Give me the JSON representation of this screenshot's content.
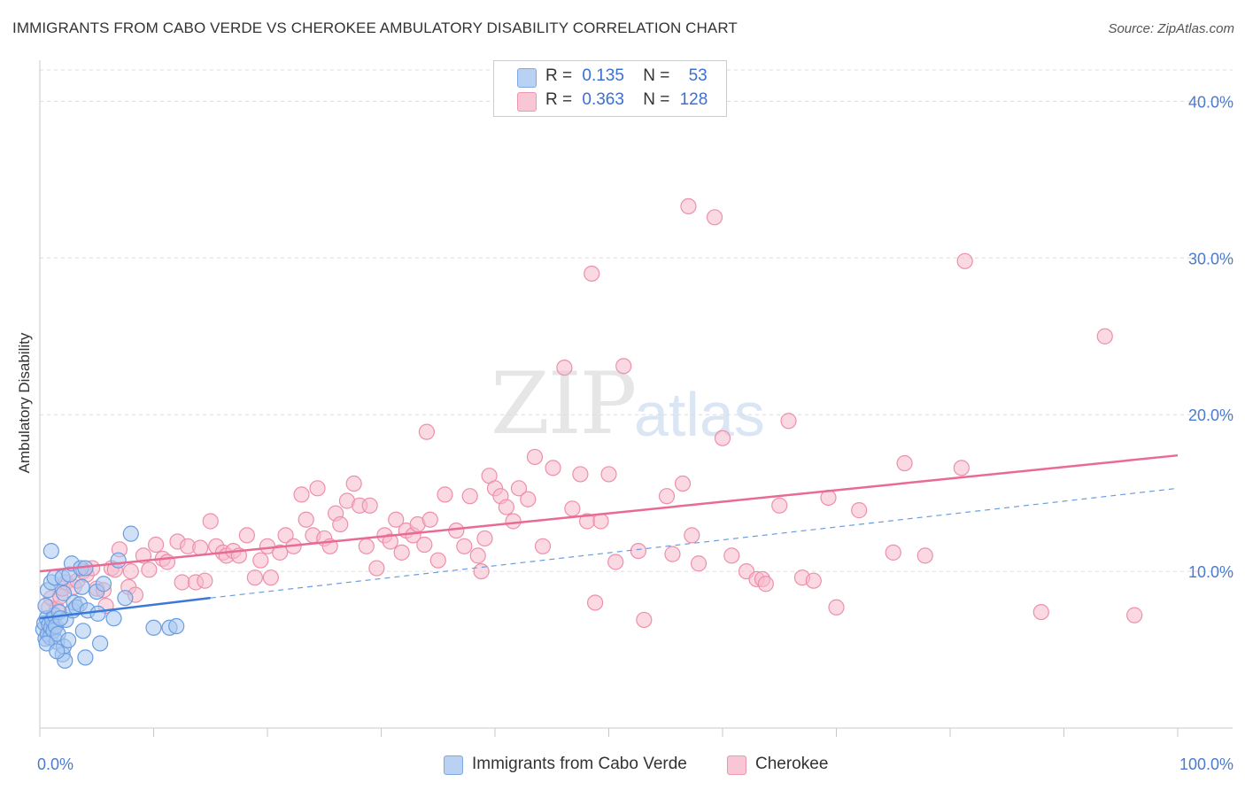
{
  "title": "IMMIGRANTS FROM CABO VERDE VS CHEROKEE AMBULATORY DISABILITY CORRELATION CHART",
  "source": "Source: ZipAtlas.com",
  "watermark": {
    "zip": "ZIP",
    "atlas": "atlas"
  },
  "legend": {
    "rows": [
      {
        "r_label": "R =",
        "r_value": "0.135",
        "n_label": "N =",
        "n_value": "53",
        "color": "#a9c8f0"
      },
      {
        "r_label": "R =",
        "r_value": "0.363",
        "n_label": "N =",
        "n_value": "128",
        "color": "#f8b9cc"
      }
    ]
  },
  "chart_data": {
    "type": "scatter",
    "title": "IMMIGRANTS FROM CABO VERDE VS CHEROKEE AMBULATORY DISABILITY CORRELATION CHART",
    "xlabel": "",
    "ylabel": "Ambulatory Disability",
    "xlim": [
      0,
      100
    ],
    "ylim": [
      0,
      42
    ],
    "x_tick_labels": [
      "0.0%",
      "100.0%"
    ],
    "y_ticks": [
      10,
      20,
      30,
      40
    ],
    "y_tick_labels": [
      "10.0%",
      "20.0%",
      "30.0%",
      "40.0%"
    ],
    "grid": true,
    "legend_position": "top-center",
    "series": [
      {
        "name": "Immigrants from Cabo Verde",
        "color": "#6a9de0",
        "fill": "#a9c8f0",
        "trend": {
          "x": [
            0,
            15
          ],
          "y": [
            7.0,
            8.3
          ],
          "style": "solid",
          "color": "#3b78d8"
        },
        "trend_ext": {
          "x": [
            15,
            100
          ],
          "y": [
            8.3,
            15.3
          ],
          "style": "dashed",
          "color": "#6a9de0"
        },
        "points": [
          [
            0.3,
            6.3
          ],
          [
            0.4,
            6.7
          ],
          [
            0.5,
            5.7
          ],
          [
            0.6,
            7.0
          ],
          [
            0.7,
            6.0
          ],
          [
            0.8,
            6.6
          ],
          [
            0.9,
            5.8
          ],
          [
            1.0,
            6.4
          ],
          [
            1.1,
            6.9
          ],
          [
            1.2,
            6.2
          ],
          [
            1.3,
            7.2
          ],
          [
            1.4,
            6.5
          ],
          [
            1.5,
            5.5
          ],
          [
            1.6,
            6.0
          ],
          [
            1.7,
            7.4
          ],
          [
            0.5,
            7.8
          ],
          [
            0.7,
            8.8
          ],
          [
            1.0,
            9.3
          ],
          [
            1.3,
            9.6
          ],
          [
            1.0,
            11.3
          ],
          [
            2.0,
            9.6
          ],
          [
            2.1,
            8.6
          ],
          [
            2.3,
            6.9
          ],
          [
            2.6,
            9.8
          ],
          [
            2.8,
            10.5
          ],
          [
            1.8,
            7.0
          ],
          [
            2.0,
            4.7
          ],
          [
            2.1,
            5.2
          ],
          [
            2.2,
            4.3
          ],
          [
            2.5,
            5.6
          ],
          [
            2.9,
            7.5
          ],
          [
            3.0,
            8.0
          ],
          [
            3.2,
            7.7
          ],
          [
            3.5,
            7.9
          ],
          [
            3.6,
            10.2
          ],
          [
            3.7,
            9.0
          ],
          [
            3.8,
            6.2
          ],
          [
            4.0,
            10.2
          ],
          [
            4.2,
            7.5
          ],
          [
            4.0,
            4.5
          ],
          [
            5.0,
            8.7
          ],
          [
            5.1,
            7.3
          ],
          [
            5.3,
            5.4
          ],
          [
            5.6,
            9.2
          ],
          [
            6.5,
            7.0
          ],
          [
            6.9,
            10.7
          ],
          [
            7.5,
            8.3
          ],
          [
            8.0,
            12.4
          ],
          [
            10.0,
            6.4
          ],
          [
            11.4,
            6.4
          ],
          [
            12.0,
            6.5
          ],
          [
            0.6,
            5.4
          ],
          [
            1.5,
            4.9
          ]
        ]
      },
      {
        "name": "Cherokee",
        "color": "#ee8faa",
        "fill": "#f8b9cc",
        "trend": {
          "x": [
            0,
            100
          ],
          "y": [
            10.0,
            17.4
          ],
          "style": "solid",
          "color": "#e96b95"
        },
        "points": [
          [
            0.8,
            7.7
          ],
          [
            1.0,
            8.3
          ],
          [
            1.3,
            6.4
          ],
          [
            1.5,
            7.6
          ],
          [
            1.8,
            8.4
          ],
          [
            2.0,
            8.9
          ],
          [
            2.3,
            9.3
          ],
          [
            3.0,
            9.0
          ],
          [
            3.3,
            9.4
          ],
          [
            3.8,
            10.0
          ],
          [
            4.1,
            9.8
          ],
          [
            4.6,
            10.2
          ],
          [
            5.0,
            8.9
          ],
          [
            5.6,
            8.8
          ],
          [
            5.8,
            7.8
          ],
          [
            6.3,
            10.2
          ],
          [
            6.6,
            10.1
          ],
          [
            7.0,
            11.4
          ],
          [
            7.8,
            9.0
          ],
          [
            8.0,
            10.0
          ],
          [
            8.4,
            8.5
          ],
          [
            9.1,
            11.0
          ],
          [
            9.6,
            10.1
          ],
          [
            10.2,
            11.7
          ],
          [
            10.8,
            10.8
          ],
          [
            11.2,
            10.6
          ],
          [
            12.1,
            11.9
          ],
          [
            12.5,
            9.3
          ],
          [
            13.0,
            11.6
          ],
          [
            13.7,
            9.3
          ],
          [
            14.1,
            11.5
          ],
          [
            14.5,
            9.4
          ],
          [
            15.0,
            13.2
          ],
          [
            15.5,
            11.6
          ],
          [
            16.1,
            11.2
          ],
          [
            16.4,
            11.0
          ],
          [
            17.0,
            11.3
          ],
          [
            17.5,
            11.0
          ],
          [
            18.2,
            12.3
          ],
          [
            18.9,
            9.6
          ],
          [
            19.4,
            10.7
          ],
          [
            20.0,
            11.6
          ],
          [
            20.3,
            9.6
          ],
          [
            21.1,
            11.2
          ],
          [
            21.6,
            12.3
          ],
          [
            22.3,
            11.6
          ],
          [
            23.0,
            14.9
          ],
          [
            23.4,
            13.3
          ],
          [
            24.0,
            12.3
          ],
          [
            24.4,
            15.3
          ],
          [
            25.0,
            12.1
          ],
          [
            25.5,
            11.6
          ],
          [
            26.0,
            13.7
          ],
          [
            26.4,
            13.0
          ],
          [
            27.0,
            14.5
          ],
          [
            27.6,
            15.6
          ],
          [
            28.1,
            14.2
          ],
          [
            28.7,
            11.6
          ],
          [
            29.0,
            14.2
          ],
          [
            29.6,
            10.2
          ],
          [
            30.3,
            12.3
          ],
          [
            30.8,
            11.9
          ],
          [
            31.3,
            13.3
          ],
          [
            31.8,
            11.2
          ],
          [
            32.2,
            12.6
          ],
          [
            32.8,
            12.3
          ],
          [
            33.2,
            13.0
          ],
          [
            33.8,
            11.7
          ],
          [
            34.3,
            13.3
          ],
          [
            35.0,
            10.7
          ],
          [
            34.0,
            18.9
          ],
          [
            35.6,
            14.9
          ],
          [
            36.6,
            12.6
          ],
          [
            37.3,
            11.6
          ],
          [
            37.8,
            14.8
          ],
          [
            38.5,
            11.0
          ],
          [
            38.8,
            10.0
          ],
          [
            39.1,
            12.1
          ],
          [
            39.5,
            16.1
          ],
          [
            40.0,
            15.3
          ],
          [
            40.5,
            14.8
          ],
          [
            41.0,
            14.1
          ],
          [
            41.6,
            13.2
          ],
          [
            42.1,
            15.3
          ],
          [
            42.9,
            14.6
          ],
          [
            43.5,
            17.3
          ],
          [
            44.2,
            11.6
          ],
          [
            45.1,
            16.6
          ],
          [
            46.1,
            23.0
          ],
          [
            46.8,
            14.0
          ],
          [
            47.5,
            16.2
          ],
          [
            48.1,
            13.2
          ],
          [
            48.5,
            29.0
          ],
          [
            48.8,
            8.0
          ],
          [
            49.3,
            13.2
          ],
          [
            50.0,
            16.2
          ],
          [
            50.6,
            10.6
          ],
          [
            51.3,
            23.1
          ],
          [
            52.6,
            11.3
          ],
          [
            53.1,
            6.9
          ],
          [
            55.1,
            14.8
          ],
          [
            55.6,
            11.1
          ],
          [
            56.5,
            15.6
          ],
          [
            57.0,
            33.3
          ],
          [
            57.3,
            12.3
          ],
          [
            57.9,
            10.5
          ],
          [
            59.3,
            32.6
          ],
          [
            60.0,
            18.5
          ],
          [
            60.8,
            11.0
          ],
          [
            62.1,
            10.0
          ],
          [
            63.0,
            9.5
          ],
          [
            63.5,
            9.5
          ],
          [
            63.8,
            9.2
          ],
          [
            65.0,
            14.2
          ],
          [
            65.8,
            19.6
          ],
          [
            67.0,
            9.6
          ],
          [
            68.0,
            9.4
          ],
          [
            69.3,
            14.7
          ],
          [
            70.0,
            7.7
          ],
          [
            72.0,
            13.9
          ],
          [
            75.0,
            11.2
          ],
          [
            76.0,
            16.9
          ],
          [
            77.8,
            11.0
          ],
          [
            81.0,
            16.6
          ],
          [
            81.3,
            29.8
          ],
          [
            88.0,
            7.4
          ],
          [
            93.6,
            25.0
          ],
          [
            96.2,
            7.2
          ]
        ]
      }
    ]
  },
  "bottom_legend": {
    "items": [
      {
        "label": "Immigrants from Cabo Verde",
        "color": "#a9c8f0"
      },
      {
        "label": "Cherokee",
        "color": "#f8b9cc"
      }
    ]
  }
}
